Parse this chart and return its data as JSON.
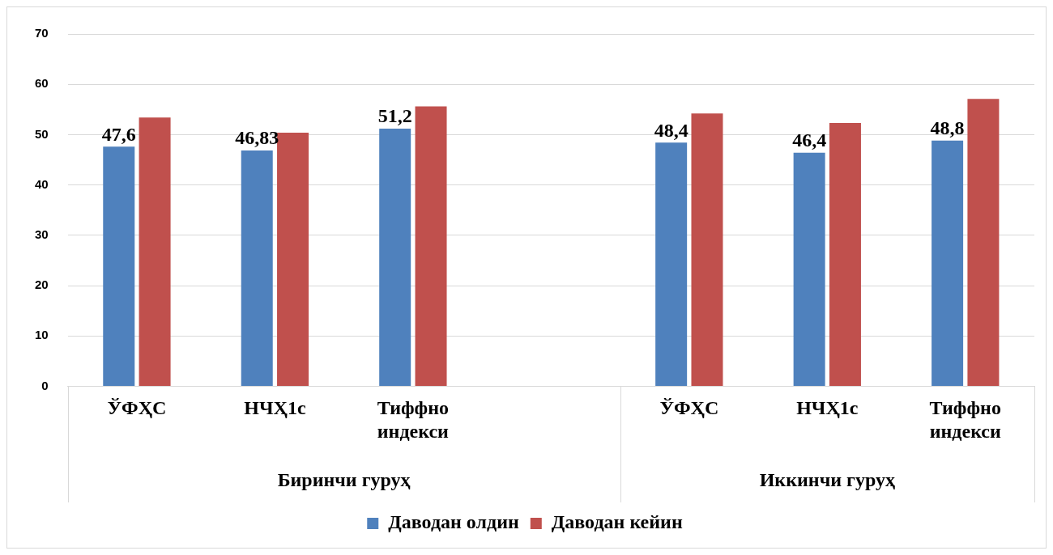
{
  "chart_data": {
    "type": "bar",
    "categories": [
      "ЎФҲС",
      "НЧҲ1с",
      "Тиффно индекси",
      null,
      "ЎФҲС",
      "НЧҲ1с",
      "Тиффно индекси"
    ],
    "series": [
      {
        "name": "Даводан олдин",
        "color": "#4f81bd",
        "values": [
          47.6,
          46.83,
          51.2,
          null,
          48.4,
          46.4,
          48.8
        ],
        "value_labels": [
          "47,6",
          "46,83",
          "51,2",
          null,
          "48,4",
          "46,4",
          "48,8"
        ]
      },
      {
        "name": "Даводан кейин",
        "color": "#c0504d",
        "values": [
          53.4,
          50.4,
          55.6,
          null,
          54.2,
          52.3,
          57.1
        ]
      }
    ],
    "ylim": [
      0,
      70
    ],
    "yticks": [
      0,
      10,
      20,
      30,
      40,
      50,
      60,
      70
    ],
    "grid": "y",
    "legend": "bottom",
    "annotations": [
      "Биринчи гуруҳ",
      "Иккинчи гуруҳ"
    ]
  }
}
